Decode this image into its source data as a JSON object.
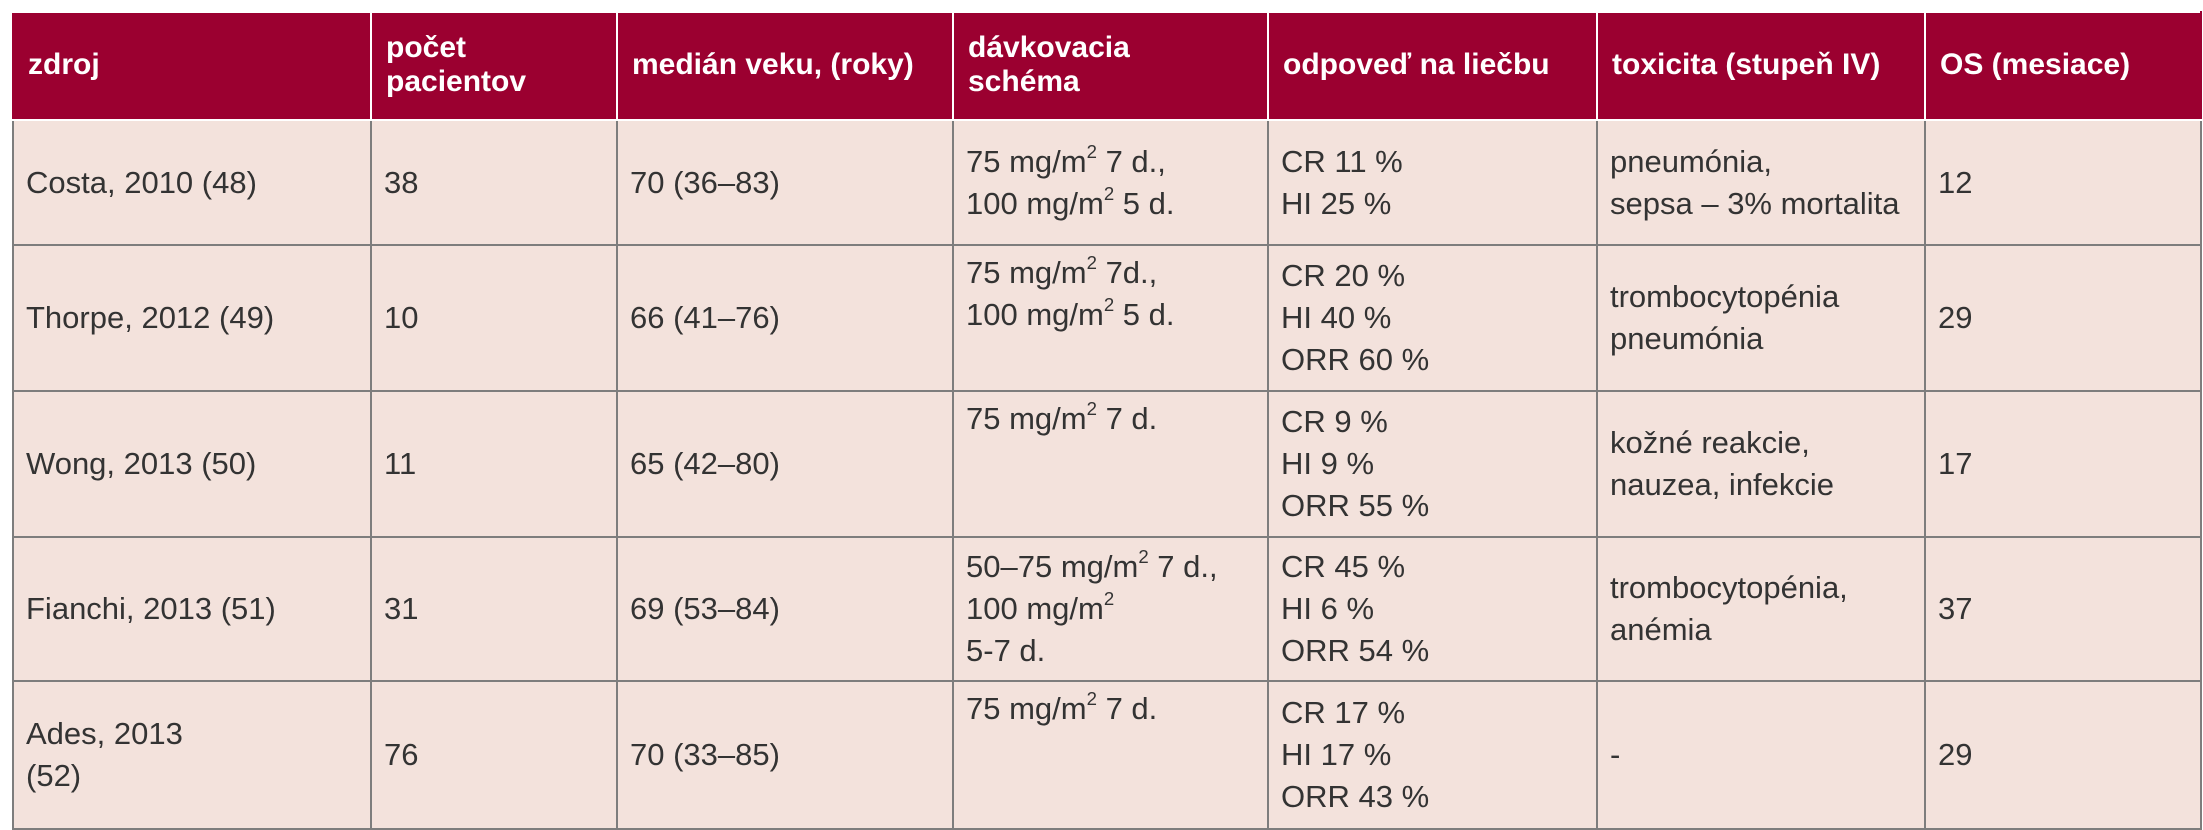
{
  "table": {
    "headers": [
      "zdroj",
      "počet pacientov",
      "medián veku, (roky)",
      "dávkovacia schéma",
      "odpoveď na liečbu",
      "toxicita (stupeň IV)",
      "OS (mesiace)"
    ],
    "header_lines": {
      "h2": [
        "počet",
        "pacientov"
      ],
      "h4": [
        "dávkovacia",
        "schéma"
      ]
    },
    "accent_color": "#9b0030",
    "row_bg_color": "#f3e2dc",
    "rows": [
      {
        "source": "Costa, 2010 (48)",
        "patients": "38",
        "median_age": "70 (36–83)",
        "dosing": [
          {
            "pre": "75 mg/m",
            "sup": "2",
            "post": " 7 d.,"
          },
          {
            "pre": "100 mg/m",
            "sup": "2",
            "post": " 5 d."
          }
        ],
        "response": [
          "CR 11 %",
          "HI 25 %"
        ],
        "toxicity": [
          "pneumónia,",
          "sepsa – 3% mortalita"
        ],
        "os": "12"
      },
      {
        "source": "Thorpe, 2012 (49)",
        "patients": "10",
        "median_age": "66 (41–76)",
        "dosing": [
          {
            "pre": "75 mg/m",
            "sup": "2",
            "post": " 7d.,"
          },
          {
            "pre": "100 mg/m",
            "sup": "2",
            "post": " 5 d."
          }
        ],
        "response": [
          "CR 20 %",
          "HI 40 %",
          "ORR 60 %"
        ],
        "toxicity": [
          "trombocytopénia",
          "pneumónia"
        ],
        "os": "29"
      },
      {
        "source": "Wong, 2013 (50)",
        "patients": "11",
        "median_age": "65 (42–80)",
        "dosing": [
          {
            "pre": "75 mg/m",
            "sup": "2",
            "post": " 7 d."
          }
        ],
        "response": [
          "CR 9 %",
          "HI 9 %",
          "ORR 55 %"
        ],
        "toxicity": [
          "kožné reakcie,",
          "nauzea, infekcie"
        ],
        "os": "17"
      },
      {
        "source": "Fianchi, 2013 (51)",
        "patients": "31",
        "median_age": "69 (53–84)",
        "dosing": [
          {
            "pre": "50–75 mg/m",
            "sup": "2",
            "post": " 7 d.,"
          },
          {
            "pre": "100 mg/m",
            "sup": "2",
            "post": ""
          },
          {
            "pre": "5-7 d.",
            "sup": "",
            "post": ""
          }
        ],
        "response": [
          "CR 45 %",
          "HI 6 %",
          "ORR 54 %"
        ],
        "toxicity": [
          "trombocytopénia,",
          "anémia"
        ],
        "os": "37"
      },
      {
        "source_lines": [
          "Ades, 2013",
          "(52)"
        ],
        "patients": "76",
        "median_age": "70 (33–85)",
        "dosing": [
          {
            "pre": "75 mg/m",
            "sup": "2",
            "post": " 7 d."
          }
        ],
        "response": [
          "CR 17 %",
          "HI 17 %",
          "ORR 43 %"
        ],
        "toxicity": [
          "-"
        ],
        "os": "29"
      }
    ]
  }
}
